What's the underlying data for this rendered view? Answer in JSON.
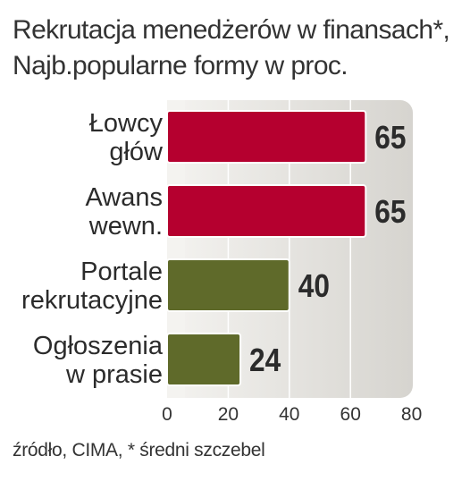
{
  "header": {
    "title": "Rekrutacja menedżerów w finansach*,",
    "subtitle": "Najb.popularne formy w proc."
  },
  "footer": {
    "source": "źródło, CIMA, * średni szczebel"
  },
  "colors": {
    "red_bar": "#b5002f",
    "olive_bar": "#5f6a2a",
    "panel_light": "#f4f3f0",
    "panel_dark": "#d6d4cf",
    "bar_outline": "#ffffff"
  },
  "chart_data": {
    "type": "bar",
    "orientation": "horizontal",
    "title": "Rekrutacja menedżerów w finansach*,",
    "subtitle": "Najb.popularne formy w proc.",
    "categories": [
      [
        "Łowcy",
        "głów"
      ],
      [
        "Awans",
        "wewn."
      ],
      [
        "Portale",
        "rekrutacyjne"
      ],
      [
        "Ogłoszenia",
        "w prasie"
      ]
    ],
    "values": [
      65,
      65,
      40,
      24
    ],
    "bar_colors": [
      "#b5002f",
      "#b5002f",
      "#5f6a2a",
      "#5f6a2a"
    ],
    "xlim": [
      0,
      80
    ],
    "xticks": [
      0,
      20,
      40,
      60,
      80
    ],
    "xlabel": "",
    "ylabel": "",
    "grid": true,
    "legend": "none",
    "data_labels": true
  }
}
